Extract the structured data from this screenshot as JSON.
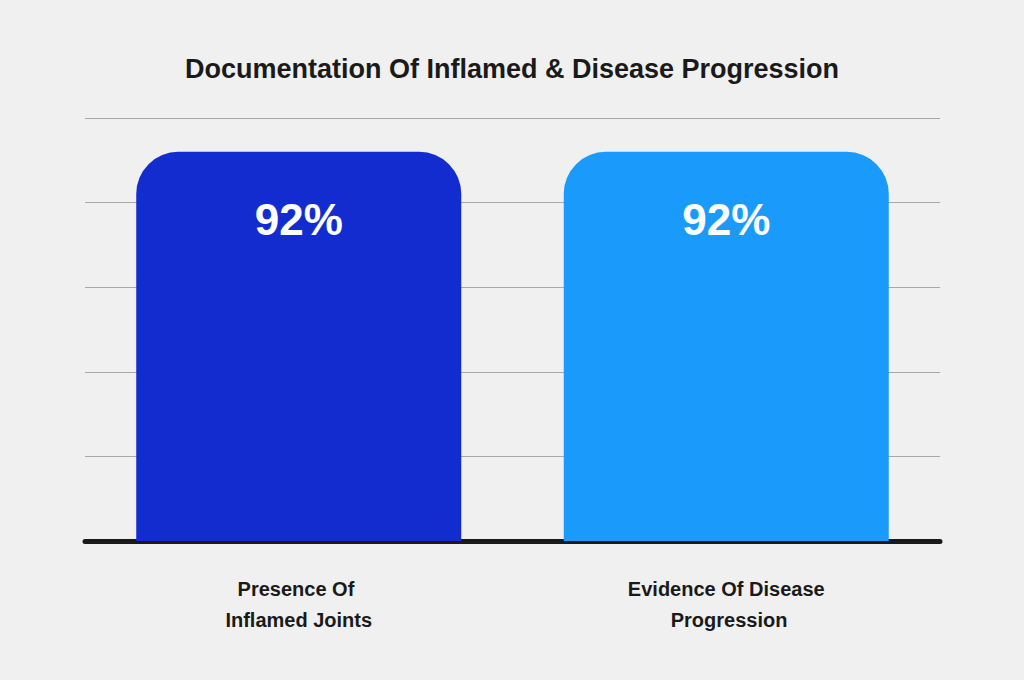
{
  "chart_data": {
    "type": "bar",
    "title": "Documentation Of Inflamed & Disease Progression",
    "categories": [
      "Presence Of Inflamed Joints",
      "Evidence Of Disease Progression"
    ],
    "values": [
      92,
      92
    ],
    "value_labels": [
      "92%",
      "92%"
    ],
    "colors": [
      "#132ccf",
      "#1a9bfc"
    ],
    "ylim": [
      0,
      100
    ],
    "yticks": [
      0,
      20,
      40,
      60,
      80,
      100
    ],
    "grid": true,
    "data_labels": true,
    "tick_labels": "x"
  }
}
